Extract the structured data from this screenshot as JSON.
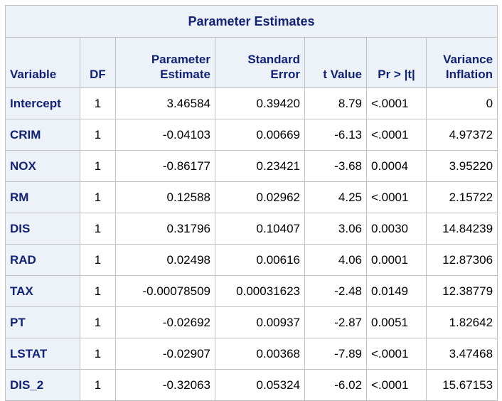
{
  "table": {
    "title": "Parameter Estimates",
    "headers": {
      "variable": "Variable",
      "df": "DF",
      "estimate": [
        "Parameter",
        "Estimate"
      ],
      "std_error": [
        "Standard",
        "Error"
      ],
      "t_value": "t Value",
      "p_value": "Pr > |t|",
      "vif": [
        "Variance",
        "Inflation"
      ]
    },
    "rows": [
      {
        "variable": "Intercept",
        "df": "1",
        "estimate": "3.46584",
        "std_error": "0.39420",
        "t_value": "8.79",
        "p_value": "<.0001",
        "vif": "0"
      },
      {
        "variable": "CRIM",
        "df": "1",
        "estimate": "-0.04103",
        "std_error": "0.00669",
        "t_value": "-6.13",
        "p_value": "<.0001",
        "vif": "4.97372"
      },
      {
        "variable": "NOX",
        "df": "1",
        "estimate": "-0.86177",
        "std_error": "0.23421",
        "t_value": "-3.68",
        "p_value": "0.0004",
        "vif": "3.95220"
      },
      {
        "variable": "RM",
        "df": "1",
        "estimate": "0.12588",
        "std_error": "0.02962",
        "t_value": "4.25",
        "p_value": "<.0001",
        "vif": "2.15722"
      },
      {
        "variable": "DIS",
        "df": "1",
        "estimate": "0.31796",
        "std_error": "0.10407",
        "t_value": "3.06",
        "p_value": "0.0030",
        "vif": "14.84239"
      },
      {
        "variable": "RAD",
        "df": "1",
        "estimate": "0.02498",
        "std_error": "0.00616",
        "t_value": "4.06",
        "p_value": "0.0001",
        "vif": "12.87306"
      },
      {
        "variable": "TAX",
        "df": "1",
        "estimate": "-0.00078509",
        "std_error": "0.00031623",
        "t_value": "-2.48",
        "p_value": "0.0149",
        "vif": "12.38779"
      },
      {
        "variable": "PT",
        "df": "1",
        "estimate": "-0.02692",
        "std_error": "0.00937",
        "t_value": "-2.87",
        "p_value": "0.0051",
        "vif": "1.82642"
      },
      {
        "variable": "LSTAT",
        "df": "1",
        "estimate": "-0.02907",
        "std_error": "0.00368",
        "t_value": "-7.89",
        "p_value": "<.0001",
        "vif": "3.47468"
      },
      {
        "variable": "DIS_2",
        "df": "1",
        "estimate": "-0.32063",
        "std_error": "0.05324",
        "t_value": "-6.02",
        "p_value": "<.0001",
        "vif": "15.67153"
      }
    ]
  }
}
